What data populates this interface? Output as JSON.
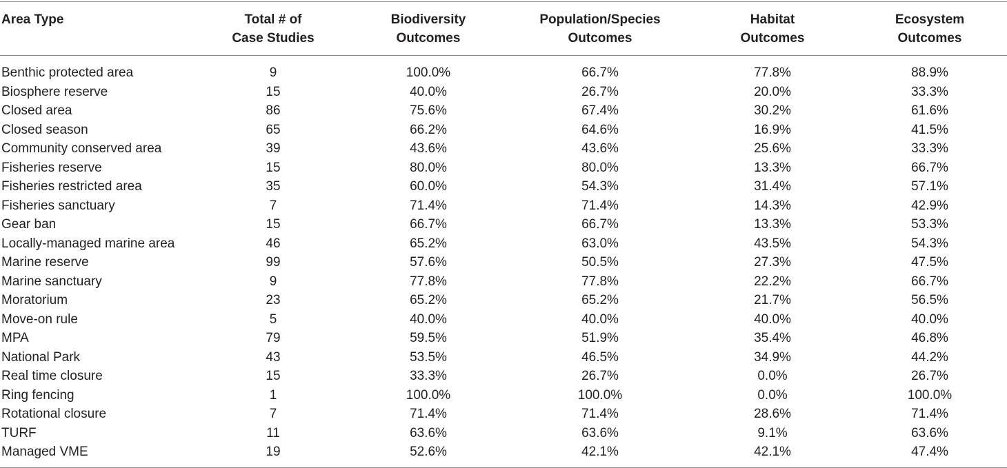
{
  "table": {
    "headers": [
      [
        "Area Type"
      ],
      [
        "Total # of",
        "Case Studies"
      ],
      [
        "Biodiversity",
        "Outcomes"
      ],
      [
        "Population/Species",
        "Outcomes"
      ],
      [
        "Habitat",
        "Outcomes"
      ],
      [
        "Ecosystem",
        "Outcomes"
      ]
    ],
    "rows": [
      [
        "Benthic protected area",
        "9",
        "100.0%",
        "66.7%",
        "77.8%",
        "88.9%"
      ],
      [
        "Biosphere reserve",
        "15",
        "40.0%",
        "26.7%",
        "20.0%",
        "33.3%"
      ],
      [
        "Closed area",
        "86",
        "75.6%",
        "67.4%",
        "30.2%",
        "61.6%"
      ],
      [
        "Closed season",
        "65",
        "66.2%",
        "64.6%",
        "16.9%",
        "41.5%"
      ],
      [
        "Community conserved area",
        "39",
        "43.6%",
        "43.6%",
        "25.6%",
        "33.3%"
      ],
      [
        "Fisheries reserve",
        "15",
        "80.0%",
        "80.0%",
        "13.3%",
        "66.7%"
      ],
      [
        "Fisheries restricted area",
        "35",
        "60.0%",
        "54.3%",
        "31.4%",
        "57.1%"
      ],
      [
        "Fisheries sanctuary",
        "7",
        "71.4%",
        "71.4%",
        "14.3%",
        "42.9%"
      ],
      [
        "Gear ban",
        "15",
        "66.7%",
        "66.7%",
        "13.3%",
        "53.3%"
      ],
      [
        "Locally-managed marine area",
        "46",
        "65.2%",
        "63.0%",
        "43.5%",
        "54.3%"
      ],
      [
        "Marine reserve",
        "99",
        "57.6%",
        "50.5%",
        "27.3%",
        "47.5%"
      ],
      [
        "Marine sanctuary",
        "9",
        "77.8%",
        "77.8%",
        "22.2%",
        "66.7%"
      ],
      [
        "Moratorium",
        "23",
        "65.2%",
        "65.2%",
        "21.7%",
        "56.5%"
      ],
      [
        "Move-on rule",
        "5",
        "40.0%",
        "40.0%",
        "40.0%",
        "40.0%"
      ],
      [
        "MPA",
        "79",
        "59.5%",
        "51.9%",
        "35.4%",
        "46.8%"
      ],
      [
        "National Park",
        "43",
        "53.5%",
        "46.5%",
        "34.9%",
        "44.2%"
      ],
      [
        "Real time closure",
        "15",
        "33.3%",
        "26.7%",
        "0.0%",
        "26.7%"
      ],
      [
        "Ring fencing",
        "1",
        "100.0%",
        "100.0%",
        "0.0%",
        "100.0%"
      ],
      [
        "Rotational closure",
        "7",
        "71.4%",
        "71.4%",
        "28.6%",
        "71.4%"
      ],
      [
        "TURF",
        "11",
        "63.6%",
        "63.6%",
        "9.1%",
        "63.6%"
      ],
      [
        "Managed VME",
        "19",
        "52.6%",
        "42.1%",
        "42.1%",
        "47.4%"
      ]
    ]
  }
}
